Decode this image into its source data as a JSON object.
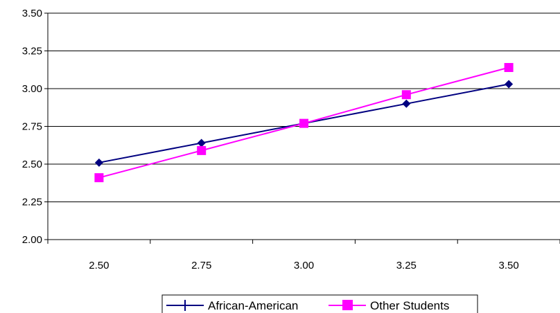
{
  "chart_data": {
    "type": "line",
    "categories": [
      "2.50",
      "2.75",
      "3.00",
      "3.25",
      "3.50"
    ],
    "ylim": [
      2.0,
      3.5
    ],
    "yticks": [
      "2.00",
      "2.25",
      "2.50",
      "2.75",
      "3.00",
      "3.25",
      "3.50"
    ],
    "grid": true,
    "legend_position": "bottom",
    "series": [
      {
        "name": "African-American",
        "color": "#000080",
        "marker": "diamond",
        "values": [
          2.51,
          2.64,
          2.77,
          2.9,
          3.03
        ]
      },
      {
        "name": "Other Students",
        "color": "#ff00ff",
        "marker": "square",
        "values": [
          2.41,
          2.59,
          2.77,
          2.96,
          3.14
        ]
      }
    ]
  }
}
